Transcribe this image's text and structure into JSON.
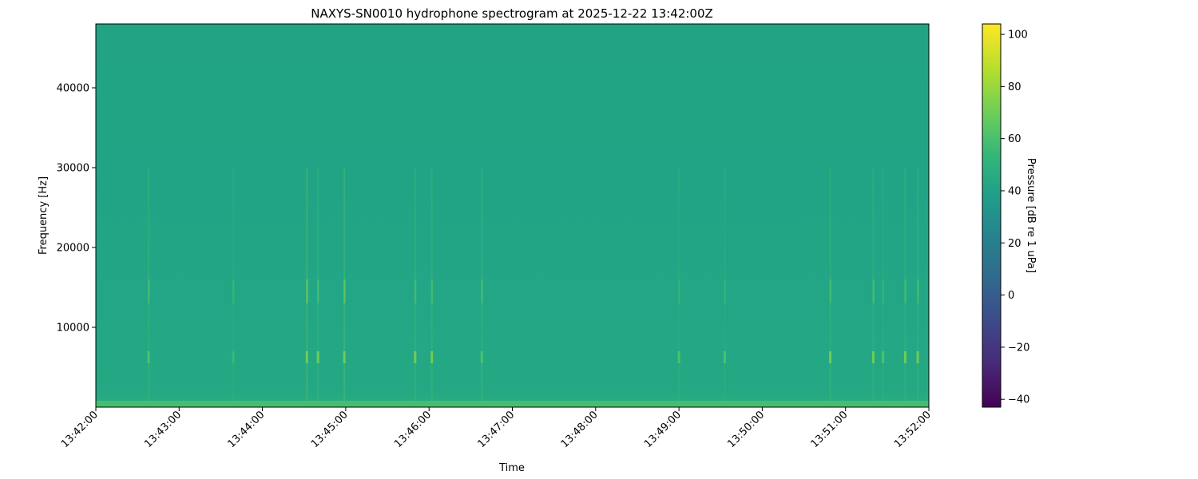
{
  "chart_data": {
    "type": "heatmap",
    "title": "NAXYS-SN0010 hydrophone spectrogram at 2025-12-22 13:42:00Z",
    "xlabel": "Time",
    "ylabel": "Frequency [Hz]",
    "x_ticks": [
      "13:42:00",
      "13:43:00",
      "13:44:00",
      "13:45:00",
      "13:46:00",
      "13:47:00",
      "13:48:00",
      "13:49:00",
      "13:50:00",
      "13:51:00",
      "13:52:00"
    ],
    "xlim_minutes": [
      0,
      10
    ],
    "y_ticks": [
      10000,
      20000,
      30000,
      40000
    ],
    "ylim": [
      0,
      48000
    ],
    "colormap": "viridis",
    "colorbar": {
      "label": "Pressure [dB re 1 uPa]",
      "ticks": [
        -40,
        -20,
        0,
        20,
        40,
        60,
        80,
        100
      ],
      "range": [
        -43,
        104
      ]
    },
    "background_level_db": 45,
    "low_frequency_band": {
      "max_hz": 500,
      "level_db": 62
    },
    "transient_events": [
      {
        "time": "13:42:38",
        "level_db": 55
      },
      {
        "time": "13:43:39",
        "level_db": 52
      },
      {
        "time": "13:44:32",
        "level_db": 58
      },
      {
        "time": "13:44:40",
        "level_db": 57
      },
      {
        "time": "13:44:59",
        "level_db": 62
      },
      {
        "time": "13:45:50",
        "level_db": 56
      },
      {
        "time": "13:46:02",
        "level_db": 57
      },
      {
        "time": "13:46:38",
        "level_db": 55
      },
      {
        "time": "13:49:00",
        "level_db": 53
      },
      {
        "time": "13:49:33",
        "level_db": 54
      },
      {
        "time": "13:50:49",
        "level_db": 57
      },
      {
        "time": "13:51:20",
        "level_db": 57
      },
      {
        "time": "13:51:27",
        "level_db": 54
      },
      {
        "time": "13:51:43",
        "level_db": 56
      },
      {
        "time": "13:51:52",
        "level_db": 57
      }
    ]
  }
}
